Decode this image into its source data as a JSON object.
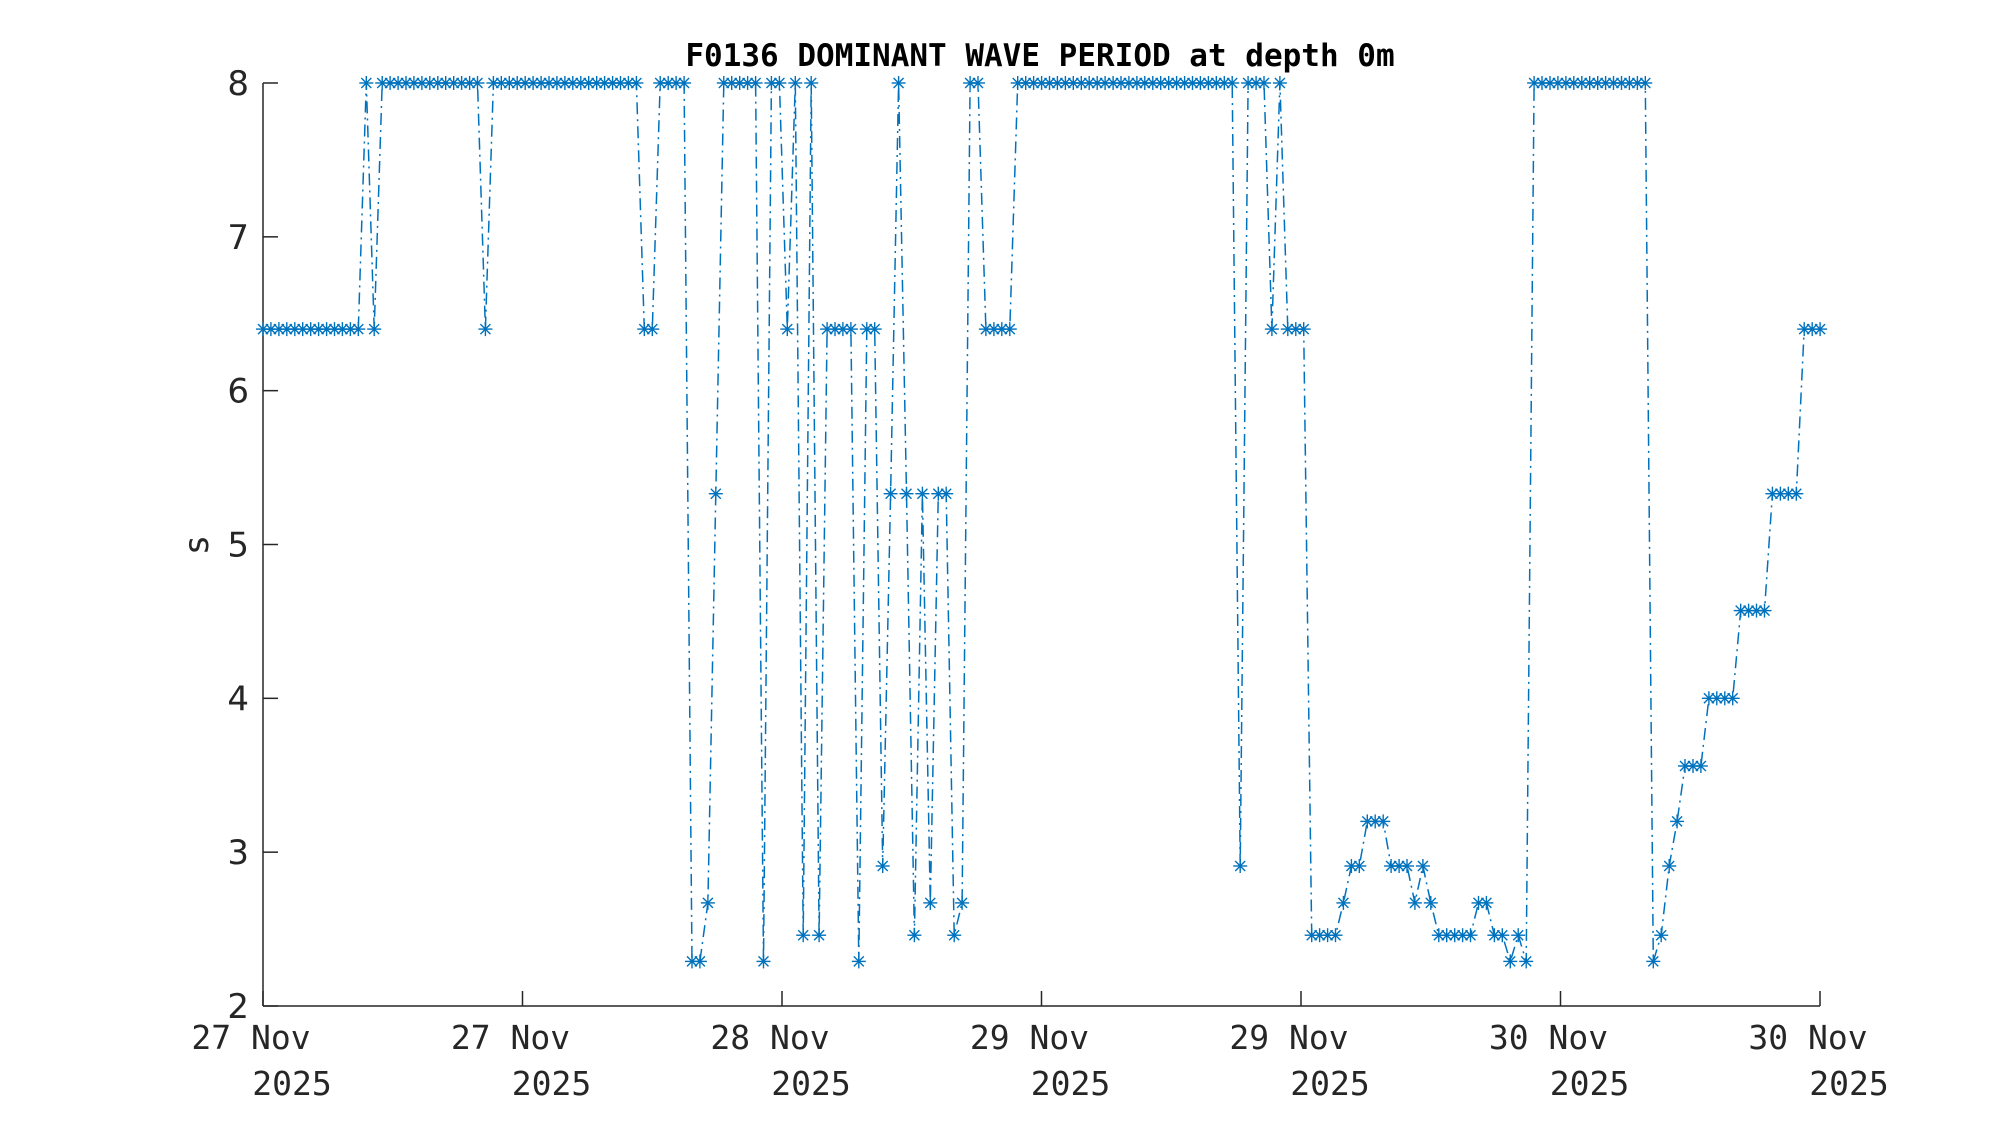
{
  "chart_data": {
    "type": "line",
    "title": "F0136 DOMINANT WAVE PERIOD at depth 0m",
    "xlabel": "",
    "ylabel": "s",
    "ylim": [
      2,
      8
    ],
    "yticks": [
      2,
      3,
      4,
      5,
      6,
      7,
      8
    ],
    "xlim_hours": [
      0,
      84
    ],
    "xticks": [
      {
        "hours": 0,
        "line1": "27 Nov",
        "line2": "2025"
      },
      {
        "hours": 14,
        "line1": "27 Nov",
        "line2": "2025"
      },
      {
        "hours": 28,
        "line1": "28 Nov",
        "line2": "2025"
      },
      {
        "hours": 42,
        "line1": "29 Nov",
        "line2": "2025"
      },
      {
        "hours": 56,
        "line1": "29 Nov",
        "line2": "2025"
      },
      {
        "hours": 70,
        "line1": "30 Nov",
        "line2": "2025"
      },
      {
        "hours": 84,
        "line1": "30 Nov",
        "line2": "2025"
      }
    ],
    "grid": false,
    "series": [
      {
        "name": "dominant wave period",
        "color": "#0072BD",
        "line_style": "dash-dot",
        "marker": "asterisk",
        "x_start_hours": 0,
        "x_step_hours": 0.4286,
        "values": [
          6.4,
          6.4,
          6.4,
          6.4,
          6.4,
          6.4,
          6.4,
          6.4,
          6.4,
          6.4,
          6.4,
          6.4,
          6.4,
          8,
          6.4,
          8,
          8,
          8,
          8,
          8,
          8,
          8,
          8,
          8,
          8,
          8,
          8,
          8,
          6.4,
          8,
          8,
          8,
          8,
          8,
          8,
          8,
          8,
          8,
          8,
          8,
          8,
          8,
          8,
          8,
          8,
          8,
          8,
          8,
          6.4,
          6.4,
          8,
          8,
          8,
          8,
          2.29,
          2.29,
          2.67,
          5.33,
          8,
          8,
          8,
          8,
          8,
          2.29,
          8,
          8,
          6.4,
          8,
          2.46,
          8,
          2.46,
          6.4,
          6.4,
          6.4,
          6.4,
          2.29,
          6.4,
          6.4,
          2.91,
          5.33,
          8,
          5.33,
          2.46,
          5.33,
          2.67,
          5.33,
          5.33,
          2.46,
          2.67,
          8,
          8,
          6.4,
          6.4,
          6.4,
          6.4,
          8,
          8,
          8,
          8,
          8,
          8,
          8,
          8,
          8,
          8,
          8,
          8,
          8,
          8,
          8,
          8,
          8,
          8,
          8,
          8,
          8,
          8,
          8,
          8,
          8,
          8,
          8,
          8,
          2.91,
          8,
          8,
          8,
          6.4,
          8,
          6.4,
          6.4,
          6.4,
          2.46,
          2.46,
          2.46,
          2.46,
          2.67,
          2.91,
          2.91,
          3.2,
          3.2,
          3.2,
          2.91,
          2.91,
          2.91,
          2.67,
          2.91,
          2.67,
          2.46,
          2.46,
          2.46,
          2.46,
          2.46,
          2.67,
          2.67,
          2.46,
          2.46,
          2.29,
          2.46,
          2.29,
          8,
          8,
          8,
          8,
          8,
          8,
          8,
          8,
          8,
          8,
          8,
          8,
          8,
          8,
          8,
          2.29,
          2.46,
          2.91,
          3.2,
          3.56,
          3.56,
          3.56,
          4.0,
          4.0,
          4.0,
          4.0,
          4.57,
          4.57,
          4.57,
          4.57,
          5.33,
          5.33,
          5.33,
          5.33,
          6.4,
          6.4,
          6.4
        ]
      }
    ]
  }
}
